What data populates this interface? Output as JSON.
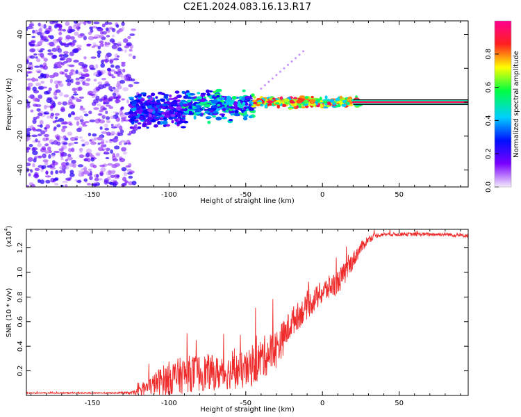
{
  "title": "C2E1.2024.083.16.13.R17",
  "chart_data": [
    {
      "type": "heatmap",
      "xlabel": "Height of straight line (km)",
      "ylabel": "Frequency (Hz)",
      "xlim": [
        -193,
        95
      ],
      "ylim": [
        -50,
        48
      ],
      "xticks": [
        -150,
        -100,
        -50,
        0,
        50
      ],
      "yticks": [
        -40,
        -20,
        0,
        20,
        40
      ],
      "colorbar": {
        "label": "Normalized spectral amplitude",
        "range": [
          0,
          1
        ],
        "ticks": [
          0.0,
          0.2,
          0.4,
          0.6,
          0.8
        ],
        "colormap": [
          "#f2e6fa",
          "#7a00ff",
          "#0000ff",
          "#00d0ff",
          "#00ff60",
          "#ffff00",
          "#ff2020",
          "#ff00a0"
        ]
      },
      "regions": [
        {
          "x_range": [
            -193,
            -118
          ],
          "freq_range": [
            -50,
            48
          ],
          "amplitude_range": [
            0.05,
            0.25
          ]
        },
        {
          "x_range": [
            -125,
            -90
          ],
          "freq_center": -5,
          "freq_spread": 10,
          "amplitude_range": [
            0.1,
            0.4
          ]
        },
        {
          "x_range": [
            -90,
            -45
          ],
          "freq_center": -2,
          "freq_spread": 8,
          "amplitude_range": [
            0.15,
            0.6
          ]
        },
        {
          "x_range": [
            -45,
            25
          ],
          "freq_center": 0,
          "freq_spread": 3,
          "amplitude_range": [
            0.4,
            0.95
          ]
        },
        {
          "x_range": [
            20,
            95
          ],
          "freq_center": 0,
          "freq_spread": 1,
          "amplitude_range": [
            0.9,
            1.0
          ]
        }
      ]
    },
    {
      "type": "line",
      "xlabel": "Height of straight line (km)",
      "ylabel": "SNR (10 * v/v)",
      "y_multiplier": "(x10",
      "y_multiplier_exp": "4",
      "y_multiplier_close": ")",
      "xlim": [
        -193,
        95
      ],
      "ylim": [
        0,
        1.35
      ],
      "xticks": [
        -150,
        -100,
        -50,
        0,
        50
      ],
      "yticks": [
        0.2,
        0.4,
        0.6,
        0.8,
        1.0,
        1.2
      ],
      "series": [
        {
          "color": "#ee2a2a",
          "x": [
            -193,
            -180,
            -160,
            -140,
            -125,
            -120,
            -115,
            -110,
            -105,
            -100,
            -95,
            -90,
            -85,
            -80,
            -75,
            -70,
            -65,
            -60,
            -55,
            -50,
            -45,
            -40,
            -35,
            -30,
            -25,
            -20,
            -15,
            -10,
            -5,
            0,
            5,
            10,
            15,
            20,
            25,
            30,
            35,
            40,
            50,
            60,
            70,
            80,
            90,
            95
          ],
          "y": [
            0.02,
            0.02,
            0.02,
            0.02,
            0.02,
            0.03,
            0.06,
            0.09,
            0.12,
            0.14,
            0.15,
            0.17,
            0.18,
            0.18,
            0.19,
            0.18,
            0.18,
            0.19,
            0.2,
            0.2,
            0.24,
            0.3,
            0.34,
            0.38,
            0.48,
            0.6,
            0.66,
            0.72,
            0.78,
            0.84,
            0.88,
            0.92,
            1.0,
            1.1,
            1.2,
            1.27,
            1.3,
            1.31,
            1.31,
            1.31,
            1.31,
            1.31,
            1.3,
            1.3
          ],
          "noise": [
            0.005,
            0.005,
            0.005,
            0.005,
            0.01,
            0.03,
            0.06,
            0.09,
            0.12,
            0.14,
            0.15,
            0.15,
            0.15,
            0.15,
            0.15,
            0.14,
            0.14,
            0.14,
            0.15,
            0.15,
            0.16,
            0.17,
            0.17,
            0.16,
            0.14,
            0.12,
            0.11,
            0.1,
            0.1,
            0.1,
            0.1,
            0.1,
            0.09,
            0.07,
            0.05,
            0.03,
            0.02,
            0.015,
            0.015,
            0.015,
            0.015,
            0.015,
            0.015,
            0.015
          ]
        }
      ]
    }
  ]
}
